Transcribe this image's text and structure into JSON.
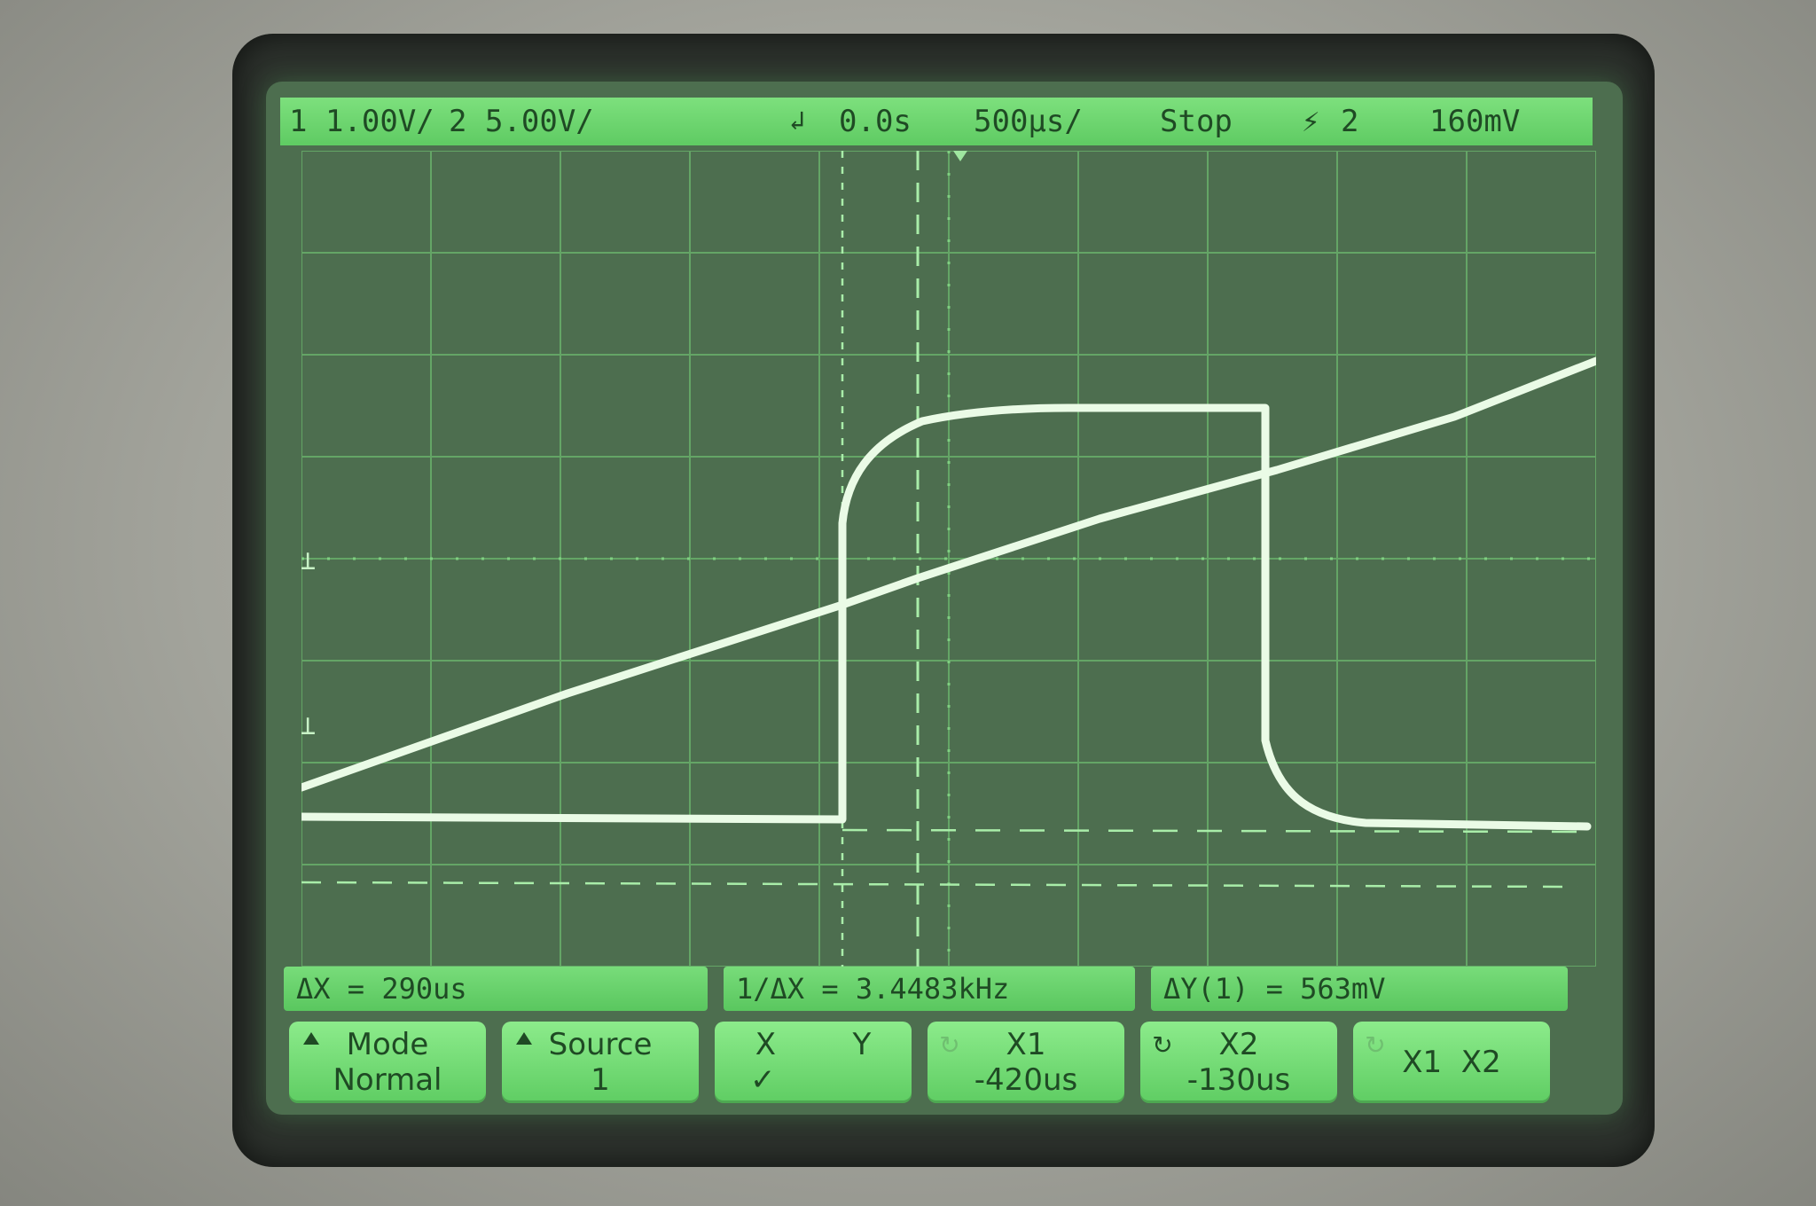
{
  "status_bar": {
    "ch1_scale": "1 1.00V/",
    "ch2_scale": "2 5.00V/",
    "trigger_delay": "0.0s",
    "timebase": "500µs/",
    "run_state": "Stop",
    "trigger_source": "2",
    "trigger_level": "160mV"
  },
  "readouts": {
    "delta_x": "ΔX = 290us",
    "inv_delta_x": "1/ΔX = 3.4483kHz",
    "delta_y": "ΔY(1) = 563mV"
  },
  "softkeys": [
    {
      "line1": "Mode",
      "line2": "Normal"
    },
    {
      "line1": "Source",
      "line2": "1"
    },
    {
      "line1": "X        Y",
      "line2": "✓"
    },
    {
      "line1": "X1",
      "line2": "-420us"
    },
    {
      "line1": "X2",
      "line2": "-130us"
    },
    {
      "line1": "X1  X2",
      "line2": ""
    }
  ],
  "colors": {
    "trace": "#eafbe6",
    "grid": "#6cb86e",
    "menu_bg": "#6fd872",
    "menu_text": "#1f4a24"
  },
  "icons": {
    "mode_arrow": "triangle-up-icon",
    "source_arrow": "triangle-up-icon",
    "x1_knob": "rotate-knob-icon",
    "x2_knob": "rotate-knob-icon",
    "trigger_edge": "rising-edge-icon"
  }
}
